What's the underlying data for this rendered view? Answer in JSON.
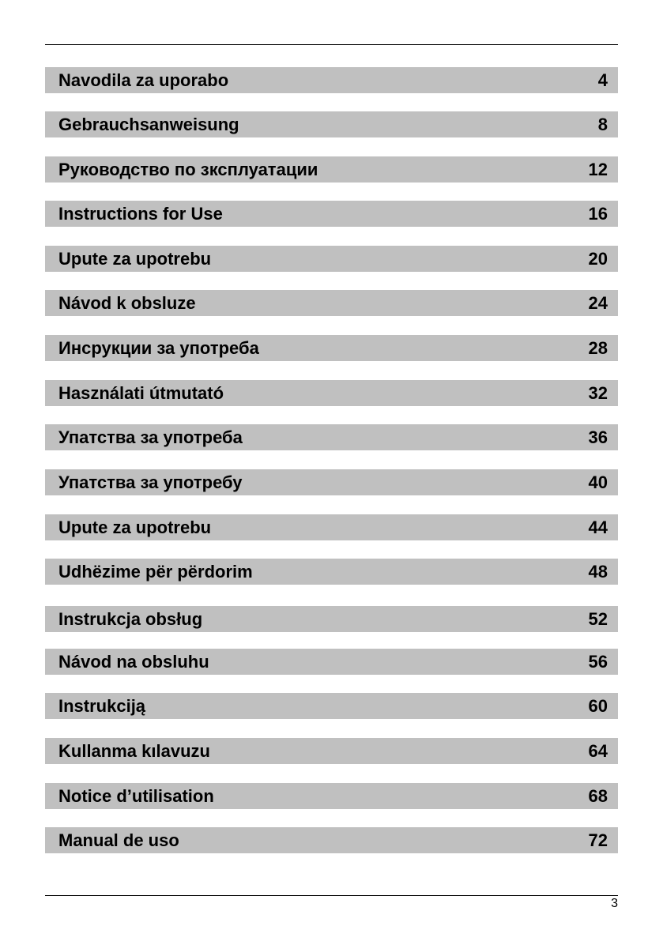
{
  "toc": [
    {
      "title": "Navodila za uporabo",
      "page": "4"
    },
    {
      "title": "Gebrauchsanweisung",
      "page": "8"
    },
    {
      "title": "Руководство по зксплуатации",
      "page": "12"
    },
    {
      "title": "Instructions for Use",
      "page": "16"
    },
    {
      "title": "Upute za upotrebu",
      "page": "20"
    },
    {
      "title": "Návod k obsluze",
      "page": "24"
    },
    {
      "title": "Инсрукции за употреба",
      "page": "28"
    },
    {
      "title": "Használati útmutató",
      "page": "32"
    },
    {
      "title": "Упатства за употреба",
      "page": "36"
    },
    {
      "title": "Упатства за употребу",
      "page": "40"
    },
    {
      "title": "Upute za upotrebu",
      "page": "44"
    },
    {
      "title": "Udhëzime për përdorim",
      "page": "48"
    },
    {
      "title": "Instrukcja obsług",
      "page": "52"
    },
    {
      "title": "Návod na obsluhu",
      "page": "56"
    },
    {
      "title": "Instrukciją",
      "page": "60"
    },
    {
      "title": "Kullanma kılavuzu",
      "page": "64"
    },
    {
      "title": "Notice d’utilisation",
      "page": "68"
    },
    {
      "title": "Manual de uso",
      "page": "72"
    }
  ],
  "footer": {
    "page_number": "3"
  },
  "colors": {
    "bar": "#c0c0c0",
    "text": "#000000"
  }
}
